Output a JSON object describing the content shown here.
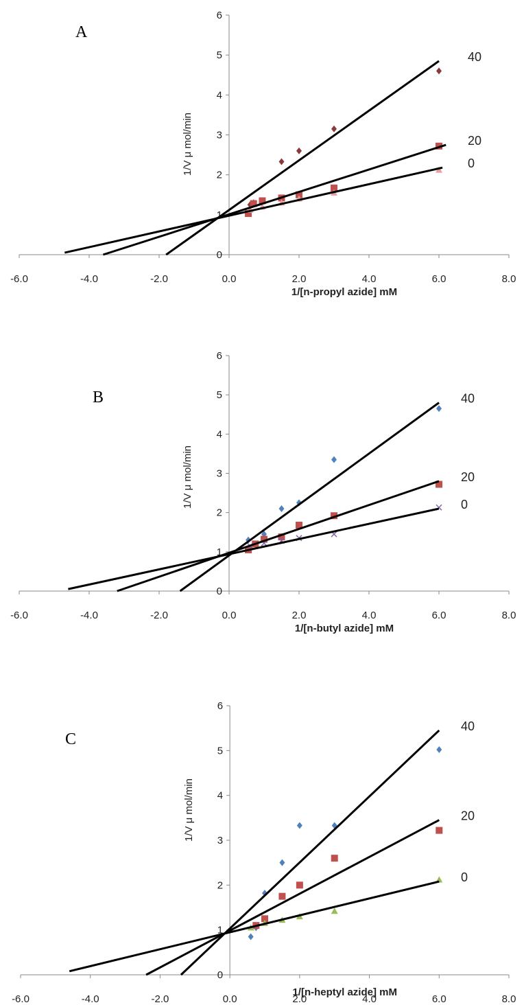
{
  "chart_data": [
    {
      "type": "scatter",
      "panel_label": "A",
      "xlabel": "1/[n-propyl azide]  mM",
      "ylabel": "1/V μ mol/min",
      "xlim": [
        -6,
        8
      ],
      "ylim": [
        0,
        6
      ],
      "xticks": [
        "-6.0",
        "-4.0",
        "-2.0",
        "0.0",
        "2.0",
        "4.0",
        "6.0",
        "8.0"
      ],
      "yticks": [
        "0",
        "1",
        "2",
        "3",
        "4",
        "5",
        "6"
      ],
      "grid": false,
      "series": [
        {
          "name": "40",
          "color": "#8B3A3A",
          "marker": "diamond",
          "points": [
            [
              0.6,
              1.25
            ],
            [
              0.7,
              1.3
            ],
            [
              1.5,
              2.33
            ],
            [
              2.0,
              2.6
            ],
            [
              3.0,
              3.15
            ],
            [
              6.0,
              4.6
            ]
          ],
          "fit": [
            [
              -1.8,
              0.0
            ],
            [
              6.0,
              4.85
            ]
          ]
        },
        {
          "name": "20",
          "color": "#C0504D",
          "marker": "square",
          "points": [
            [
              0.55,
              1.03
            ],
            [
              0.7,
              1.28
            ],
            [
              0.95,
              1.35
            ],
            [
              1.5,
              1.42
            ],
            [
              2.0,
              1.5
            ],
            [
              3.0,
              1.67
            ],
            [
              6.0,
              2.72
            ]
          ],
          "fit": [
            [
              -3.6,
              0.0
            ],
            [
              6.2,
              2.75
            ]
          ]
        },
        {
          "name": "0",
          "color": "#E6A0A0",
          "marker": "triangle",
          "points": [
            [
              0.6,
              1.12
            ],
            [
              0.95,
              1.2
            ],
            [
              1.5,
              1.3
            ],
            [
              2.0,
              1.4
            ],
            [
              3.0,
              1.55
            ],
            [
              6.0,
              2.12
            ]
          ],
          "fit": [
            [
              -4.7,
              0.05
            ],
            [
              6.1,
              2.18
            ]
          ]
        }
      ]
    },
    {
      "type": "scatter",
      "panel_label": "B",
      "xlabel": "1/[n-butyl azide]  mM",
      "ylabel": "1/V μ mol/min",
      "xlim": [
        -6,
        8
      ],
      "ylim": [
        0,
        6
      ],
      "xticks": [
        "-6.0",
        "-4.0",
        "-2.0",
        "0.0",
        "2.0",
        "4.0",
        "6.0",
        "8.0"
      ],
      "yticks": [
        "0",
        "1",
        "2",
        "3",
        "4",
        "5",
        "6"
      ],
      "grid": false,
      "series": [
        {
          "name": "40",
          "color": "#4F81BD",
          "marker": "diamond",
          "points": [
            [
              0.55,
              1.3
            ],
            [
              1.0,
              1.45
            ],
            [
              1.5,
              2.1
            ],
            [
              2.0,
              2.25
            ],
            [
              3.0,
              3.35
            ],
            [
              6.0,
              4.65
            ]
          ],
          "fit": [
            [
              -1.4,
              0.0
            ],
            [
              6.0,
              4.8
            ]
          ]
        },
        {
          "name": "20",
          "color": "#C0504D",
          "marker": "square",
          "points": [
            [
              0.55,
              1.05
            ],
            [
              0.75,
              1.2
            ],
            [
              1.0,
              1.32
            ],
            [
              1.5,
              1.38
            ],
            [
              2.0,
              1.68
            ],
            [
              3.0,
              1.92
            ],
            [
              6.0,
              2.72
            ]
          ],
          "fit": [
            [
              -3.2,
              0.0
            ],
            [
              6.0,
              2.8
            ]
          ]
        },
        {
          "name": "0",
          "color": "#8064A2",
          "marker": "cross",
          "points": [
            [
              0.6,
              1.15
            ],
            [
              1.0,
              1.22
            ],
            [
              1.5,
              1.28
            ],
            [
              2.0,
              1.35
            ],
            [
              3.0,
              1.45
            ],
            [
              6.0,
              2.13
            ]
          ],
          "fit": [
            [
              -4.6,
              0.05
            ],
            [
              6.0,
              2.1
            ]
          ]
        }
      ]
    },
    {
      "type": "scatter",
      "panel_label": "C",
      "xlabel": "1/[n-heptyl azide]  mM",
      "ylabel": "1/V μ mol/min",
      "xlim": [
        -6,
        8
      ],
      "ylim": [
        0,
        6
      ],
      "xticks": [
        "-6.0",
        "-4.0",
        "-2.0",
        "0.0",
        "2.0",
        "4.0",
        "6.0",
        "8.0"
      ],
      "yticks": [
        "0",
        "1",
        "2",
        "3",
        "4",
        "5",
        "6"
      ],
      "grid": false,
      "series": [
        {
          "name": "40",
          "color": "#4F81BD",
          "marker": "diamond",
          "points": [
            [
              0.6,
              0.85
            ],
            [
              0.75,
              1.05
            ],
            [
              1.0,
              1.82
            ],
            [
              1.5,
              2.5
            ],
            [
              2.0,
              3.33
            ],
            [
              3.0,
              3.33
            ],
            [
              6.0,
              5.02
            ]
          ],
          "fit": [
            [
              -1.4,
              0.0
            ],
            [
              6.0,
              5.45
            ]
          ]
        },
        {
          "name": "20",
          "color": "#C0504D",
          "marker": "square",
          "points": [
            [
              0.75,
              1.1
            ],
            [
              1.0,
              1.25
            ],
            [
              1.5,
              1.75
            ],
            [
              2.0,
              2.0
            ],
            [
              3.0,
              2.6
            ],
            [
              6.0,
              3.22
            ]
          ],
          "fit": [
            [
              -2.4,
              0.0
            ],
            [
              6.0,
              3.45
            ]
          ]
        },
        {
          "name": "0",
          "color": "#9BBB59",
          "marker": "triangle",
          "points": [
            [
              0.6,
              1.05
            ],
            [
              1.0,
              1.15
            ],
            [
              1.5,
              1.22
            ],
            [
              2.0,
              1.3
            ],
            [
              3.0,
              1.42
            ],
            [
              6.0,
              2.12
            ]
          ],
          "fit": [
            [
              -4.6,
              0.08
            ],
            [
              6.0,
              2.08
            ]
          ]
        }
      ]
    }
  ]
}
